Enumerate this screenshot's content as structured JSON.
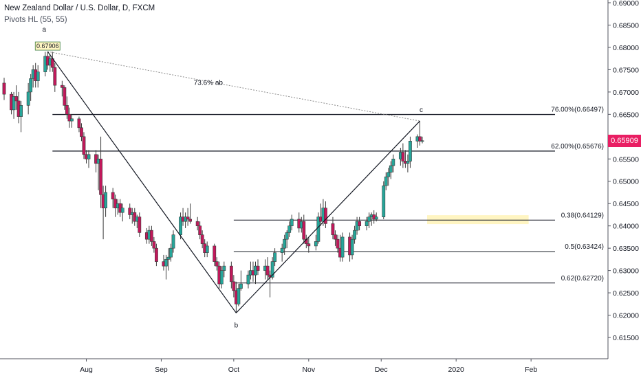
{
  "header": {
    "title": "New Zealand Dollar / U.S. Dollar, D, FXCM",
    "indicator": "Pivots HL (55, 55)"
  },
  "current_price": {
    "label": "0.65909",
    "value": 0.65909,
    "color": "#e91e63"
  },
  "colors": {
    "up": "#26a69a",
    "down": "#c2185b",
    "line": "#131722",
    "zone": "#fff5c2"
  },
  "chart_data": {
    "type": "candlestick",
    "symbol": "NZDUSD",
    "timeframe": "D",
    "ylim": [
      0.611,
      0.69
    ],
    "y_ticks": [
      "0.61500",
      "0.62000",
      "0.62500",
      "0.63000",
      "0.63500",
      "0.64000",
      "0.64500",
      "0.65000",
      "0.65500",
      "0.66000",
      "0.66500",
      "0.67000",
      "0.67500",
      "0.68000",
      "0.68500",
      "0.69000"
    ],
    "x_ticks": [
      "Aug",
      "Sep",
      "Oct",
      "Nov",
      "Dec",
      "2020",
      "Feb"
    ],
    "x_tick_dates": [
      "2019-08-01",
      "2019-09-01",
      "2019-10-01",
      "2019-11-01",
      "2019-12-01",
      "2020-01-01",
      "2020-02-01"
    ],
    "xlim": [
      "2019-06-28",
      "2020-02-26"
    ],
    "candles": [
      {
        "date": "2019-06-28",
        "o": 0.672,
        "h": 0.6732,
        "l": 0.6682,
        "c": 0.6695
      },
      {
        "date": "2019-07-01",
        "o": 0.6695,
        "h": 0.67,
        "l": 0.665,
        "c": 0.666
      },
      {
        "date": "2019-07-02",
        "o": 0.666,
        "h": 0.67,
        "l": 0.664,
        "c": 0.669
      },
      {
        "date": "2019-07-03",
        "o": 0.669,
        "h": 0.6715,
        "l": 0.666,
        "c": 0.668
      },
      {
        "date": "2019-07-04",
        "o": 0.668,
        "h": 0.67,
        "l": 0.663,
        "c": 0.6645
      },
      {
        "date": "2019-07-05",
        "o": 0.6645,
        "h": 0.668,
        "l": 0.661,
        "c": 0.667
      },
      {
        "date": "2019-07-08",
        "o": 0.667,
        "h": 0.672,
        "l": 0.665,
        "c": 0.67
      },
      {
        "date": "2019-07-09",
        "o": 0.67,
        "h": 0.674,
        "l": 0.668,
        "c": 0.673
      },
      {
        "date": "2019-07-10",
        "o": 0.673,
        "h": 0.676,
        "l": 0.671,
        "c": 0.675
      },
      {
        "date": "2019-07-11",
        "o": 0.675,
        "h": 0.6765,
        "l": 0.671,
        "c": 0.6725
      },
      {
        "date": "2019-07-12",
        "o": 0.6725,
        "h": 0.676,
        "l": 0.671,
        "c": 0.6745
      },
      {
        "date": "2019-07-15",
        "o": 0.6745,
        "h": 0.679,
        "l": 0.6735,
        "c": 0.678
      },
      {
        "date": "2019-07-16",
        "o": 0.678,
        "h": 0.67906,
        "l": 0.675,
        "c": 0.676
      },
      {
        "date": "2019-07-17",
        "o": 0.676,
        "h": 0.6785,
        "l": 0.6745,
        "c": 0.6775
      },
      {
        "date": "2019-07-18",
        "o": 0.6775,
        "h": 0.679,
        "l": 0.6745,
        "c": 0.6755
      },
      {
        "date": "2019-07-19",
        "o": 0.6755,
        "h": 0.6765,
        "l": 0.67,
        "c": 0.6715
      },
      {
        "date": "2019-07-22",
        "o": 0.6715,
        "h": 0.6725,
        "l": 0.669,
        "c": 0.671
      },
      {
        "date": "2019-07-23",
        "o": 0.671,
        "h": 0.6715,
        "l": 0.666,
        "c": 0.667
      },
      {
        "date": "2019-07-24",
        "o": 0.667,
        "h": 0.669,
        "l": 0.664,
        "c": 0.665
      },
      {
        "date": "2019-07-25",
        "o": 0.665,
        "h": 0.6665,
        "l": 0.662,
        "c": 0.6635
      },
      {
        "date": "2019-07-26",
        "o": 0.6635,
        "h": 0.665,
        "l": 0.662,
        "c": 0.664
      },
      {
        "date": "2019-07-29",
        "o": 0.664,
        "h": 0.6645,
        "l": 0.661,
        "c": 0.662
      },
      {
        "date": "2019-07-30",
        "o": 0.662,
        "h": 0.663,
        "l": 0.659,
        "c": 0.66
      },
      {
        "date": "2019-07-31",
        "o": 0.66,
        "h": 0.661,
        "l": 0.655,
        "c": 0.656
      },
      {
        "date": "2019-08-01",
        "o": 0.656,
        "h": 0.657,
        "l": 0.654,
        "c": 0.655
      },
      {
        "date": "2019-08-02",
        "o": 0.655,
        "h": 0.657,
        "l": 0.653,
        "c": 0.656
      },
      {
        "date": "2019-08-05",
        "o": 0.656,
        "h": 0.657,
        "l": 0.652,
        "c": 0.654
      },
      {
        "date": "2019-08-06",
        "o": 0.654,
        "h": 0.656,
        "l": 0.648,
        "c": 0.655
      },
      {
        "date": "2019-08-07",
        "o": 0.655,
        "h": 0.66,
        "l": 0.644,
        "c": 0.647
      },
      {
        "date": "2019-08-08",
        "o": 0.647,
        "h": 0.649,
        "l": 0.637,
        "c": 0.644
      },
      {
        "date": "2019-08-09",
        "o": 0.644,
        "h": 0.649,
        "l": 0.642,
        "c": 0.6475
      },
      {
        "date": "2019-08-12",
        "o": 0.6475,
        "h": 0.6485,
        "l": 0.644,
        "c": 0.646
      },
      {
        "date": "2019-08-13",
        "o": 0.646,
        "h": 0.647,
        "l": 0.642,
        "c": 0.644
      },
      {
        "date": "2019-08-14",
        "o": 0.644,
        "h": 0.646,
        "l": 0.6425,
        "c": 0.645
      },
      {
        "date": "2019-08-15",
        "o": 0.645,
        "h": 0.646,
        "l": 0.642,
        "c": 0.643
      },
      {
        "date": "2019-08-16",
        "o": 0.643,
        "h": 0.645,
        "l": 0.641,
        "c": 0.644
      },
      {
        "date": "2019-08-19",
        "o": 0.644,
        "h": 0.645,
        "l": 0.6415,
        "c": 0.6425
      },
      {
        "date": "2019-08-20",
        "o": 0.6425,
        "h": 0.644,
        "l": 0.6405,
        "c": 0.643
      },
      {
        "date": "2019-08-21",
        "o": 0.643,
        "h": 0.644,
        "l": 0.64,
        "c": 0.641
      },
      {
        "date": "2019-08-22",
        "o": 0.641,
        "h": 0.6425,
        "l": 0.6395,
        "c": 0.642
      },
      {
        "date": "2019-08-23",
        "o": 0.642,
        "h": 0.643,
        "l": 0.6375,
        "c": 0.6385
      },
      {
        "date": "2019-08-26",
        "o": 0.6385,
        "h": 0.6395,
        "l": 0.636,
        "c": 0.637
      },
      {
        "date": "2019-08-27",
        "o": 0.637,
        "h": 0.64,
        "l": 0.636,
        "c": 0.639
      },
      {
        "date": "2019-08-28",
        "o": 0.639,
        "h": 0.64,
        "l": 0.6355,
        "c": 0.6365
      },
      {
        "date": "2019-08-29",
        "o": 0.6365,
        "h": 0.6375,
        "l": 0.634,
        "c": 0.635
      },
      {
        "date": "2019-08-30",
        "o": 0.635,
        "h": 0.636,
        "l": 0.631,
        "c": 0.632
      },
      {
        "date": "2019-09-02",
        "o": 0.632,
        "h": 0.6335,
        "l": 0.63,
        "c": 0.631
      },
      {
        "date": "2019-09-03",
        "o": 0.631,
        "h": 0.6335,
        "l": 0.628,
        "c": 0.6325
      },
      {
        "date": "2019-09-04",
        "o": 0.6325,
        "h": 0.635,
        "l": 0.63,
        "c": 0.633
      },
      {
        "date": "2019-09-05",
        "o": 0.633,
        "h": 0.636,
        "l": 0.632,
        "c": 0.635
      },
      {
        "date": "2019-09-06",
        "o": 0.635,
        "h": 0.639,
        "l": 0.634,
        "c": 0.638
      },
      {
        "date": "2019-09-09",
        "o": 0.638,
        "h": 0.643,
        "l": 0.637,
        "c": 0.642
      },
      {
        "date": "2019-09-10",
        "o": 0.642,
        "h": 0.644,
        "l": 0.64,
        "c": 0.641
      },
      {
        "date": "2019-09-11",
        "o": 0.641,
        "h": 0.643,
        "l": 0.6395,
        "c": 0.642
      },
      {
        "date": "2019-09-12",
        "o": 0.642,
        "h": 0.644,
        "l": 0.64,
        "c": 0.6415
      },
      {
        "date": "2019-09-13",
        "o": 0.6415,
        "h": 0.645,
        "l": 0.6405,
        "c": 0.641
      },
      {
        "date": "2019-09-16",
        "o": 0.641,
        "h": 0.642,
        "l": 0.639,
        "c": 0.64
      },
      {
        "date": "2019-09-17",
        "o": 0.64,
        "h": 0.641,
        "l": 0.637,
        "c": 0.638
      },
      {
        "date": "2019-09-18",
        "o": 0.638,
        "h": 0.639,
        "l": 0.635,
        "c": 0.636
      },
      {
        "date": "2019-09-19",
        "o": 0.636,
        "h": 0.637,
        "l": 0.633,
        "c": 0.634
      },
      {
        "date": "2019-09-20",
        "o": 0.634,
        "h": 0.6365,
        "l": 0.633,
        "c": 0.6355
      },
      {
        "date": "2019-09-23",
        "o": 0.6355,
        "h": 0.636,
        "l": 0.631,
        "c": 0.632
      },
      {
        "date": "2019-09-24",
        "o": 0.632,
        "h": 0.633,
        "l": 0.63,
        "c": 0.631
      },
      {
        "date": "2019-09-25",
        "o": 0.631,
        "h": 0.632,
        "l": 0.626,
        "c": 0.627
      },
      {
        "date": "2019-09-26",
        "o": 0.627,
        "h": 0.631,
        "l": 0.626,
        "c": 0.63
      },
      {
        "date": "2019-09-27",
        "o": 0.63,
        "h": 0.632,
        "l": 0.6285,
        "c": 0.631
      },
      {
        "date": "2019-09-30",
        "o": 0.631,
        "h": 0.632,
        "l": 0.626,
        "c": 0.6275
      },
      {
        "date": "2019-10-01",
        "o": 0.6275,
        "h": 0.629,
        "l": 0.624,
        "c": 0.6255
      },
      {
        "date": "2019-10-02",
        "o": 0.6255,
        "h": 0.6275,
        "l": 0.6205,
        "c": 0.6225
      },
      {
        "date": "2019-10-03",
        "o": 0.6225,
        "h": 0.627,
        "l": 0.622,
        "c": 0.626
      },
      {
        "date": "2019-10-04",
        "o": 0.626,
        "h": 0.63,
        "l": 0.6255,
        "c": 0.627
      },
      {
        "date": "2019-10-07",
        "o": 0.627,
        "h": 0.63,
        "l": 0.626,
        "c": 0.629
      },
      {
        "date": "2019-10-08",
        "o": 0.629,
        "h": 0.632,
        "l": 0.628,
        "c": 0.63
      },
      {
        "date": "2019-10-09",
        "o": 0.63,
        "h": 0.632,
        "l": 0.6275,
        "c": 0.629
      },
      {
        "date": "2019-10-10",
        "o": 0.629,
        "h": 0.632,
        "l": 0.627,
        "c": 0.631
      },
      {
        "date": "2019-10-11",
        "o": 0.631,
        "h": 0.6325,
        "l": 0.629,
        "c": 0.63
      },
      {
        "date": "2019-10-14",
        "o": 0.63,
        "h": 0.6325,
        "l": 0.628,
        "c": 0.631
      },
      {
        "date": "2019-10-15",
        "o": 0.631,
        "h": 0.633,
        "l": 0.628,
        "c": 0.629
      },
      {
        "date": "2019-10-16",
        "o": 0.629,
        "h": 0.63,
        "l": 0.624,
        "c": 0.6285
      },
      {
        "date": "2019-10-17",
        "o": 0.6285,
        "h": 0.633,
        "l": 0.628,
        "c": 0.632
      },
      {
        "date": "2019-10-18",
        "o": 0.632,
        "h": 0.635,
        "l": 0.631,
        "c": 0.634
      },
      {
        "date": "2019-10-21",
        "o": 0.634,
        "h": 0.636,
        "l": 0.632,
        "c": 0.635
      },
      {
        "date": "2019-10-22",
        "o": 0.635,
        "h": 0.638,
        "l": 0.6335,
        "c": 0.637
      },
      {
        "date": "2019-10-23",
        "o": 0.637,
        "h": 0.639,
        "l": 0.635,
        "c": 0.6385
      },
      {
        "date": "2019-10-24",
        "o": 0.6385,
        "h": 0.641,
        "l": 0.6375,
        "c": 0.64
      },
      {
        "date": "2019-10-25",
        "o": 0.64,
        "h": 0.6425,
        "l": 0.639,
        "c": 0.6415
      },
      {
        "date": "2019-10-28",
        "o": 0.6415,
        "h": 0.643,
        "l": 0.6385,
        "c": 0.6395
      },
      {
        "date": "2019-10-29",
        "o": 0.6395,
        "h": 0.642,
        "l": 0.6385,
        "c": 0.641
      },
      {
        "date": "2019-10-30",
        "o": 0.641,
        "h": 0.6425,
        "l": 0.636,
        "c": 0.637
      },
      {
        "date": "2019-10-31",
        "o": 0.637,
        "h": 0.638,
        "l": 0.635,
        "c": 0.636
      },
      {
        "date": "2019-11-01",
        "o": 0.636,
        "h": 0.6375,
        "l": 0.634,
        "c": 0.6355
      },
      {
        "date": "2019-11-04",
        "o": 0.6355,
        "h": 0.638,
        "l": 0.6345,
        "c": 0.6365
      },
      {
        "date": "2019-11-05",
        "o": 0.6365,
        "h": 0.643,
        "l": 0.636,
        "c": 0.642
      },
      {
        "date": "2019-11-06",
        "o": 0.642,
        "h": 0.645,
        "l": 0.64,
        "c": 0.641
      },
      {
        "date": "2019-11-07",
        "o": 0.641,
        "h": 0.646,
        "l": 0.64,
        "c": 0.644
      },
      {
        "date": "2019-11-08",
        "o": 0.644,
        "h": 0.6455,
        "l": 0.6395,
        "c": 0.6405
      },
      {
        "date": "2019-11-11",
        "o": 0.6405,
        "h": 0.642,
        "l": 0.637,
        "c": 0.638
      },
      {
        "date": "2019-11-12",
        "o": 0.638,
        "h": 0.639,
        "l": 0.6355,
        "c": 0.637
      },
      {
        "date": "2019-11-13",
        "o": 0.637,
        "h": 0.638,
        "l": 0.634,
        "c": 0.635
      },
      {
        "date": "2019-11-14",
        "o": 0.635,
        "h": 0.638,
        "l": 0.632,
        "c": 0.633
      },
      {
        "date": "2019-11-15",
        "o": 0.633,
        "h": 0.6385,
        "l": 0.632,
        "c": 0.6375
      },
      {
        "date": "2019-11-18",
        "o": 0.6375,
        "h": 0.6385,
        "l": 0.632,
        "c": 0.6335
      },
      {
        "date": "2019-11-19",
        "o": 0.6335,
        "h": 0.638,
        "l": 0.6325,
        "c": 0.637
      },
      {
        "date": "2019-11-20",
        "o": 0.637,
        "h": 0.64,
        "l": 0.636,
        "c": 0.639
      },
      {
        "date": "2019-11-21",
        "o": 0.639,
        "h": 0.642,
        "l": 0.638,
        "c": 0.641
      },
      {
        "date": "2019-11-22",
        "o": 0.641,
        "h": 0.642,
        "l": 0.639,
        "c": 0.64
      },
      {
        "date": "2019-11-25",
        "o": 0.64,
        "h": 0.642,
        "l": 0.639,
        "c": 0.641
      },
      {
        "date": "2019-11-26",
        "o": 0.641,
        "h": 0.643,
        "l": 0.6395,
        "c": 0.642
      },
      {
        "date": "2019-11-27",
        "o": 0.642,
        "h": 0.643,
        "l": 0.64,
        "c": 0.6425
      },
      {
        "date": "2019-11-28",
        "o": 0.6425,
        "h": 0.6435,
        "l": 0.6405,
        "c": 0.6415
      },
      {
        "date": "2019-11-29",
        "o": 0.6415,
        "h": 0.643,
        "l": 0.641,
        "c": 0.642
      },
      {
        "date": "2019-12-02",
        "o": 0.642,
        "h": 0.65,
        "l": 0.6415,
        "c": 0.649
      },
      {
        "date": "2019-12-03",
        "o": 0.649,
        "h": 0.652,
        "l": 0.648,
        "c": 0.651
      },
      {
        "date": "2019-12-04",
        "o": 0.651,
        "h": 0.653,
        "l": 0.649,
        "c": 0.652
      },
      {
        "date": "2019-12-05",
        "o": 0.652,
        "h": 0.6545,
        "l": 0.6505,
        "c": 0.6535
      },
      {
        "date": "2019-12-06",
        "o": 0.6535,
        "h": 0.656,
        "l": 0.652,
        "c": 0.655
      },
      {
        "date": "2019-12-09",
        "o": 0.655,
        "h": 0.6575,
        "l": 0.6535,
        "c": 0.6565
      },
      {
        "date": "2019-12-10",
        "o": 0.6565,
        "h": 0.6585,
        "l": 0.653,
        "c": 0.6545
      },
      {
        "date": "2019-12-11",
        "o": 0.6545,
        "h": 0.657,
        "l": 0.653,
        "c": 0.654
      },
      {
        "date": "2019-12-12",
        "o": 0.654,
        "h": 0.656,
        "l": 0.652,
        "c": 0.6545
      },
      {
        "date": "2019-12-13",
        "o": 0.6545,
        "h": 0.66,
        "l": 0.653,
        "c": 0.659
      },
      {
        "date": "2019-12-16",
        "o": 0.659,
        "h": 0.6605,
        "l": 0.6575,
        "c": 0.66
      },
      {
        "date": "2019-12-17",
        "o": 0.66,
        "h": 0.6635,
        "l": 0.658,
        "c": 0.659
      },
      {
        "date": "2019-12-18",
        "o": 0.659,
        "h": 0.66,
        "l": 0.6585,
        "c": 0.65909
      }
    ],
    "harmonic": {
      "points": [
        {
          "label": "a",
          "date": "2019-07-16",
          "price": 0.67906,
          "price_label": "0.67906"
        },
        {
          "label": "b",
          "date": "2019-10-02",
          "price": 0.6205
        },
        {
          "label": "c",
          "date": "2019-12-17",
          "price": 0.6635
        }
      ],
      "ratio_label": "73.6% ab"
    },
    "fib_levels": [
      {
        "label": "76.00%(0.66497)",
        "price": 0.66497,
        "from": "2019-07-18"
      },
      {
        "label": "62.00%(0.65676)",
        "price": 0.65676,
        "from": "2019-07-18"
      },
      {
        "label": "0.38(0.64129)",
        "price": 0.64129,
        "from": "2019-10-01"
      },
      {
        "label": "0.5(0.63424)",
        "price": 0.63424,
        "from": "2019-10-01"
      },
      {
        "label": "0.62(0.62720)",
        "price": 0.6272,
        "from": "2019-10-01"
      }
    ],
    "zone": {
      "from": "2019-12-20",
      "to": "2020-01-31",
      "low": 0.6404,
      "high": 0.6424
    }
  }
}
